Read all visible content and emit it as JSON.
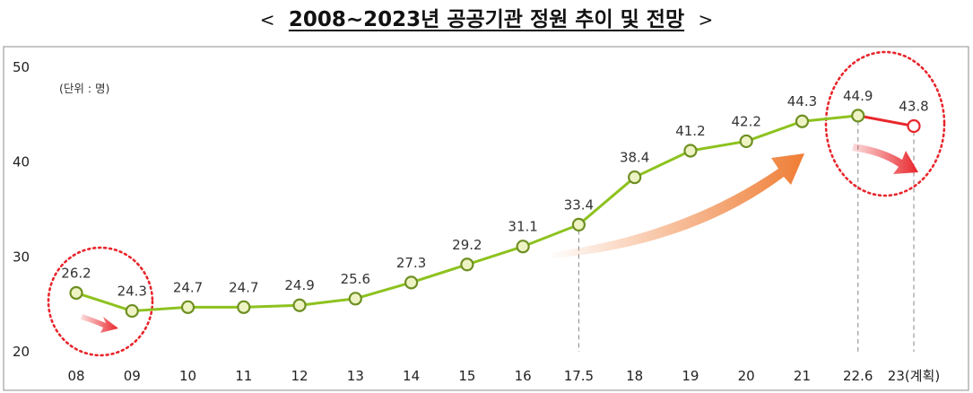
{
  "title": "2008~2023년 공공기관 정원 추이 및 전망",
  "title_bracket_left": "<",
  "title_bracket_right": ">",
  "chart_data": {
    "type": "line",
    "title": "2008~2023년 공공기관 정원 추이 및 전망",
    "unit_label": "(단위 : 명)",
    "ylim": [
      20,
      50
    ],
    "y_ticks": [
      "20",
      "30",
      "40",
      "50"
    ],
    "grid": false,
    "categories": [
      "08",
      "09",
      "10",
      "11",
      "12",
      "13",
      "14",
      "15",
      "16",
      "17.5",
      "18",
      "19",
      "20",
      "21",
      "22.6",
      "23(계획)"
    ],
    "values": [
      26.2,
      24.3,
      24.7,
      24.7,
      24.9,
      25.6,
      27.3,
      29.2,
      31.1,
      33.4,
      38.4,
      41.2,
      42.2,
      44.3,
      44.9,
      43.8
    ],
    "value_labels": [
      "26.2",
      "24.3",
      "24.7",
      "24.7",
      "24.9",
      "25.6",
      "27.3",
      "29.2",
      "31.1",
      "33.4",
      "38.4",
      "41.2",
      "42.2",
      "44.3",
      "44.9",
      "43.8"
    ],
    "colors": {
      "line": "#8dc21f",
      "marker_fill": "#eef3c4",
      "marker_stroke": "#6e8f22",
      "forecast": "#e8262b",
      "highlight_circle": "#e8262b",
      "trend_arrow": "#ef7d35"
    }
  }
}
